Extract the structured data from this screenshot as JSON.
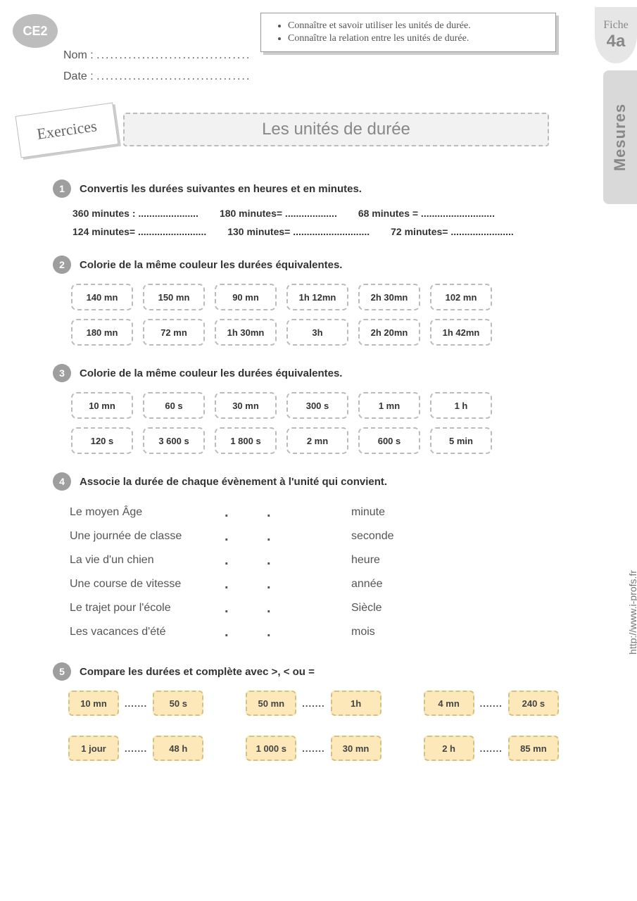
{
  "colors": {
    "badge_bg": "#bdbdbd",
    "title_bg": "#f2f2f2",
    "dash_border": "#bbbbbb",
    "num_bg": "#9e9e9e",
    "cmp_fill": "#fce8b8",
    "cmp_border": "#d6c083",
    "side_bg": "#d9d9d9",
    "text": "#444444"
  },
  "header": {
    "level": "CE2",
    "nom_label": "Nom :",
    "date_label": "Date :",
    "dots": "..................................",
    "fiche_label": "Fiche",
    "fiche_num": "4a",
    "side_label": "Mesures",
    "objectives": [
      "Connaître et savoir utiliser les unités de durée.",
      "Connaître la relation entre les unités de durée."
    ],
    "exercices_label": "Exercices",
    "title": "Les unités de durée",
    "url": "http://www.i-profs.fr"
  },
  "ex1": {
    "num": "1",
    "instr": "Convertis les durées suivantes en heures et en minutes.",
    "items_row1": [
      "360 minutes : ......................",
      "180 minutes=  ...................",
      "68 minutes =  ..........................."
    ],
    "items_row2": [
      "124 minutes= .........................",
      "130 minutes= ............................",
      "72 minutes= ......................."
    ]
  },
  "ex2": {
    "num": "2",
    "instr": "Colorie de la même couleur les durées équivalentes.",
    "row1": [
      "140 mn",
      "150 mn",
      "90 mn",
      "1h 12mn",
      "2h 30mn",
      "102 mn"
    ],
    "row2": [
      "180 mn",
      "72 mn",
      "1h 30mn",
      "3h",
      "2h 20mn",
      "1h 42mn"
    ]
  },
  "ex3": {
    "num": "3",
    "instr": "Colorie de la même couleur les durées équivalentes.",
    "row1": [
      "10 mn",
      "60 s",
      "30 mn",
      "300 s",
      "1 mn",
      "1 h"
    ],
    "row2": [
      "120 s",
      "3 600 s",
      "1 800 s",
      "2 mn",
      "600 s",
      "5 min"
    ]
  },
  "ex4": {
    "num": "4",
    "instr": "Associe la durée de chaque évènement à l'unité qui convient.",
    "left": [
      "Le moyen Âge",
      "Une journée de classe",
      "La vie d'un chien",
      "Une course de vitesse",
      "Le trajet pour l'école",
      "Les vacances d'été"
    ],
    "right": [
      "minute",
      "seconde",
      "heure",
      "année",
      "Siècle",
      "mois"
    ]
  },
  "ex5": {
    "num": "5",
    "instr": "Compare les durées et complète avec >, < ou =",
    "pairs": [
      [
        "10 mn",
        "50 s"
      ],
      [
        "50 mn",
        "1h"
      ],
      [
        "4 mn",
        "240 s"
      ],
      [
        "1 jour",
        "48 h"
      ],
      [
        "1 000 s",
        "30 mn"
      ],
      [
        "2 h",
        "85 mn"
      ]
    ],
    "dots": "......."
  }
}
